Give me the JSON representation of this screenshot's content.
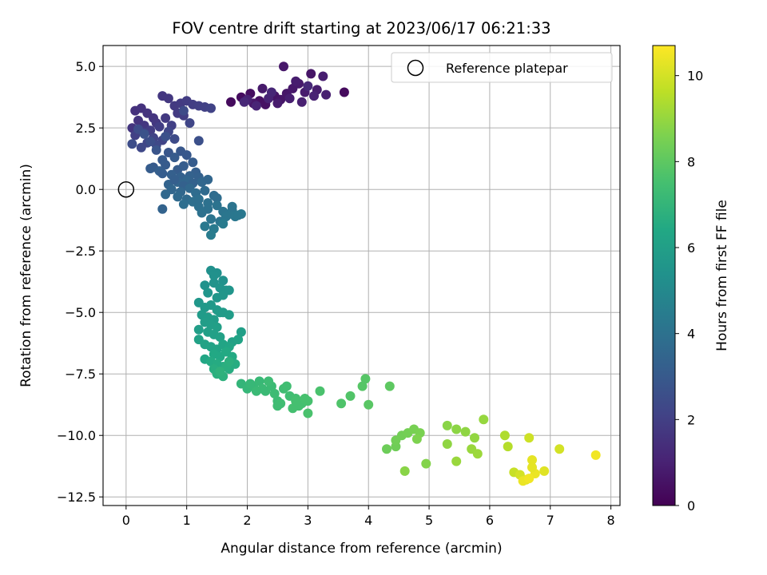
{
  "chart_data": {
    "type": "scatter",
    "title": "FOV centre drift starting at 2023/06/17 06:21:33",
    "xlabel": "Angular distance from reference (arcmin)",
    "ylabel": "Rotation from reference (arcmin)",
    "xlim": [
      -0.38,
      8.15
    ],
    "ylim": [
      -12.85,
      5.85
    ],
    "xticks": [
      0,
      1,
      2,
      3,
      4,
      5,
      6,
      7,
      8
    ],
    "xtick_labels": [
      "0",
      "1",
      "2",
      "3",
      "4",
      "5",
      "6",
      "7",
      "8"
    ],
    "yticks": [
      5.0,
      2.5,
      0.0,
      -2.5,
      -5.0,
      -7.5,
      -10.0,
      -12.5
    ],
    "ytick_labels": [
      "5.0",
      "2.5",
      "0.0",
      "−2.5",
      "−5.0",
      "−7.5",
      "−10.0",
      "−12.5"
    ],
    "grid": true,
    "legend": {
      "placement": "upper-right",
      "entries": [
        "Reference platepar"
      ]
    },
    "reference_point": {
      "x": 0,
      "y": 0,
      "label": "Reference platepar"
    },
    "colorbar": {
      "label": "Hours from first FF file",
      "colormap": "viridis",
      "range": [
        0,
        10.7
      ],
      "ticks": [
        0,
        2,
        4,
        6,
        8,
        10
      ],
      "tick_labels": [
        "0",
        "2",
        "4",
        "6",
        "8",
        "10"
      ]
    },
    "series": [
      {
        "x": [
          1.73,
          1.9,
          2.05,
          2.2,
          2.3,
          2.45,
          2.55,
          2.65,
          2.75,
          2.85,
          2.95,
          3.05,
          3.15,
          3.25,
          3.6,
          2.1,
          2.25,
          2.5,
          2.7,
          2.9,
          3.1,
          2.6,
          2.8,
          3.3,
          2.0,
          2.35,
          2.15,
          2.4,
          1.95,
          3.0
        ],
        "y": [
          3.55,
          3.75,
          3.9,
          3.6,
          3.45,
          3.8,
          3.65,
          3.9,
          4.1,
          4.3,
          3.95,
          4.7,
          4.05,
          4.6,
          3.95,
          3.5,
          4.1,
          3.5,
          3.7,
          3.55,
          3.8,
          5.0,
          4.4,
          3.85,
          3.65,
          3.7,
          3.4,
          3.95,
          3.55,
          4.2
        ],
        "hours": [
          0.3,
          0.35,
          0.4,
          0.45,
          0.5,
          0.55,
          0.6,
          0.65,
          0.7,
          0.75,
          0.8,
          0.6,
          0.85,
          0.9,
          0.3,
          0.7,
          0.75,
          0.8,
          0.9,
          0.95,
          1.0,
          0.7,
          0.85,
          0.95,
          1.0,
          1.05,
          1.1,
          1.15,
          1.2,
          1.25
        ]
      },
      {
        "x": [
          0.15,
          0.25,
          0.35,
          0.45,
          0.6,
          0.7,
          0.8,
          0.9,
          1.0,
          1.1,
          1.2,
          1.3,
          1.4,
          0.2,
          0.3,
          0.5,
          0.65,
          0.85,
          0.95,
          0.1,
          0.4,
          0.55,
          0.75,
          0.15,
          0.3,
          0.45,
          0.6,
          1.05,
          0.35,
          0.7,
          0.25,
          0.5,
          0.8,
          0.95,
          0.2,
          0.1,
          0.4,
          1.2,
          0.65,
          0.3
        ],
        "y": [
          3.2,
          3.3,
          3.1,
          2.9,
          3.8,
          3.7,
          3.4,
          3.5,
          3.6,
          3.45,
          3.4,
          3.35,
          3.3,
          2.8,
          2.6,
          2.7,
          2.9,
          3.1,
          3.0,
          2.5,
          2.4,
          2.55,
          2.6,
          2.2,
          2.3,
          2.1,
          2.0,
          2.7,
          1.9,
          2.35,
          1.7,
          1.8,
          2.05,
          3.2,
          2.45,
          1.85,
          1.95,
          1.98,
          2.15,
          2.25
        ],
        "hours": [
          1.5,
          1.55,
          1.6,
          1.65,
          1.7,
          1.75,
          1.8,
          1.85,
          1.9,
          1.95,
          2.0,
          2.05,
          2.1,
          1.6,
          1.7,
          1.75,
          1.8,
          1.85,
          1.9,
          1.65,
          1.9,
          1.95,
          2.0,
          2.0,
          2.05,
          2.1,
          2.15,
          2.2,
          2.2,
          2.25,
          2.3,
          2.35,
          2.4,
          2.4,
          2.45,
          2.5,
          2.55,
          2.6,
          2.65,
          2.7
        ]
      },
      {
        "x": [
          0.5,
          0.7,
          0.9,
          1.0,
          0.6,
          0.8,
          1.1,
          0.45,
          0.65,
          0.85,
          0.95,
          1.15,
          0.55,
          0.75,
          0.9,
          1.05,
          0.7,
          0.85,
          1.0,
          0.4,
          0.6,
          0.8,
          0.95,
          1.1,
          1.2,
          0.75,
          0.9,
          1.05,
          1.25,
          1.35,
          0.65,
          0.85,
          1.0,
          1.15,
          1.3,
          1.45,
          1.5,
          0.95,
          1.1,
          1.2,
          1.35,
          1.5,
          1.6,
          1.7,
          1.75,
          1.8,
          1.9,
          1.25,
          1.4,
          1.55,
          1.65,
          1.85,
          1.3,
          1.45,
          1.6,
          1.75,
          1.4,
          0.6,
          1.2,
          1.35
        ],
        "y": [
          1.6,
          1.5,
          1.55,
          1.4,
          1.2,
          1.3,
          1.1,
          0.9,
          1.0,
          0.8,
          0.95,
          0.7,
          0.75,
          0.6,
          0.5,
          0.55,
          0.2,
          0.3,
          0.35,
          0.85,
          0.65,
          0.4,
          0.15,
          0.25,
          0.5,
          0.0,
          -0.1,
          0.05,
          0.3,
          0.4,
          -0.2,
          -0.3,
          -0.4,
          -0.15,
          -0.05,
          -0.25,
          -0.35,
          -0.6,
          -0.5,
          -0.7,
          -0.8,
          -0.65,
          -0.9,
          -1.0,
          -0.85,
          -1.1,
          -1.0,
          -0.95,
          -1.2,
          -1.3,
          -1.1,
          -1.05,
          -1.5,
          -1.6,
          -1.4,
          -0.7,
          -1.85,
          -0.8,
          -0.4,
          -0.55
        ],
        "hours": [
          2.8,
          2.85,
          2.9,
          2.95,
          3.0,
          3.05,
          3.1,
          3.0,
          3.05,
          3.1,
          3.15,
          3.2,
          3.2,
          3.25,
          3.3,
          3.35,
          3.4,
          3.45,
          3.5,
          3.1,
          3.15,
          3.2,
          3.3,
          3.35,
          3.3,
          3.5,
          3.55,
          3.6,
          3.55,
          3.5,
          3.6,
          3.65,
          3.7,
          3.75,
          3.7,
          3.75,
          3.8,
          3.85,
          3.9,
          3.95,
          4.0,
          4.05,
          4.1,
          4.15,
          4.2,
          4.25,
          4.3,
          4.0,
          4.1,
          4.15,
          4.2,
          4.25,
          4.3,
          4.35,
          4.4,
          4.1,
          4.45,
          3.4,
          3.9,
          4.0
        ]
      },
      {
        "x": [
          1.4,
          1.5,
          1.6,
          1.3,
          1.45,
          1.55,
          1.65,
          1.35,
          1.5,
          1.6,
          1.7,
          1.2,
          1.3,
          1.4,
          1.5,
          1.55,
          1.25,
          1.35,
          1.45,
          1.6,
          1.7,
          1.3,
          1.4,
          1.5,
          1.2,
          1.35,
          1.45,
          1.55,
          1.75,
          1.9,
          1.2,
          1.3,
          1.4,
          1.5,
          1.6,
          1.7,
          1.85,
          1.3,
          1.45,
          1.55,
          1.65,
          1.75,
          1.4,
          1.5,
          1.6,
          1.7,
          1.8,
          1.45,
          1.55,
          1.65,
          1.5,
          1.6,
          1.7,
          1.55,
          1.45
        ],
        "y": [
          -3.3,
          -3.4,
          -3.7,
          -3.9,
          -3.8,
          -4.0,
          -4.1,
          -4.2,
          -4.4,
          -4.3,
          -4.1,
          -4.6,
          -4.8,
          -4.7,
          -4.9,
          -5.0,
          -5.1,
          -5.2,
          -5.3,
          -5.0,
          -5.1,
          -5.4,
          -5.5,
          -5.6,
          -5.7,
          -5.8,
          -5.9,
          -6.0,
          -6.2,
          -5.8,
          -6.1,
          -6.3,
          -6.4,
          -6.5,
          -6.3,
          -6.4,
          -6.1,
          -6.9,
          -6.7,
          -6.8,
          -6.6,
          -6.8,
          -7.0,
          -7.1,
          -7.2,
          -7.3,
          -7.1,
          -7.3,
          -7.4,
          -7.2,
          -7.5,
          -7.6,
          -7.0,
          -7.4,
          -3.5
        ],
        "hours": [
          5.3,
          5.3,
          5.35,
          5.4,
          5.45,
          5.5,
          5.5,
          5.55,
          5.6,
          5.6,
          5.55,
          5.65,
          5.7,
          5.7,
          5.75,
          5.8,
          5.8,
          5.85,
          5.85,
          5.8,
          5.85,
          5.9,
          5.95,
          6.0,
          5.95,
          6.0,
          6.05,
          6.1,
          6.1,
          6.0,
          6.1,
          6.15,
          6.2,
          6.25,
          6.25,
          6.3,
          6.2,
          6.35,
          6.4,
          6.4,
          6.45,
          6.45,
          6.5,
          6.55,
          6.55,
          6.6,
          6.6,
          6.65,
          6.7,
          6.7,
          6.75,
          6.8,
          6.75,
          6.85,
          5.35
        ]
      },
      {
        "x": [
          1.9,
          2.0,
          2.1,
          2.2,
          2.3,
          2.4,
          2.5,
          2.6,
          2.7,
          2.8,
          2.9,
          3.0,
          2.05,
          2.25,
          2.45,
          2.65,
          2.85,
          2.95,
          2.15,
          2.35,
          2.55,
          2.75,
          3.2,
          3.55,
          3.7,
          3.95,
          4.0,
          3.9,
          4.35,
          2.5,
          2.8,
          3.0
        ],
        "y": [
          -7.9,
          -8.1,
          -8.0,
          -7.8,
          -8.2,
          -8.0,
          -8.6,
          -8.1,
          -8.4,
          -8.5,
          -8.7,
          -8.6,
          -7.9,
          -8.1,
          -8.3,
          -8.0,
          -8.8,
          -8.5,
          -8.2,
          -7.8,
          -8.7,
          -8.9,
          -8.2,
          -8.7,
          -8.4,
          -7.7,
          -8.75,
          -8.0,
          -8.0,
          -8.8,
          -8.6,
          -9.1
        ],
        "hours": [
          7.0,
          7.05,
          7.1,
          7.15,
          7.2,
          7.25,
          7.3,
          7.35,
          7.4,
          7.45,
          7.5,
          7.55,
          7.1,
          7.2,
          7.3,
          7.4,
          7.5,
          7.55,
          7.2,
          7.3,
          7.4,
          7.5,
          7.6,
          7.7,
          7.75,
          7.85,
          7.9,
          7.85,
          8.0,
          7.35,
          7.5,
          7.6
        ]
      },
      {
        "x": [
          4.3,
          4.45,
          4.55,
          4.65,
          4.75,
          4.85,
          4.45,
          4.8,
          4.95,
          5.3,
          5.45,
          5.6,
          5.75,
          5.9,
          5.3,
          5.7,
          5.8,
          5.45,
          4.6
        ],
        "y": [
          -10.55,
          -10.45,
          -10.0,
          -9.9,
          -9.75,
          -9.9,
          -10.2,
          -10.15,
          -11.15,
          -9.6,
          -9.75,
          -9.85,
          -10.1,
          -9.35,
          -10.35,
          -10.55,
          -10.75,
          -11.05,
          -11.45
        ],
        "hours": [
          8.3,
          8.35,
          8.4,
          8.45,
          8.5,
          8.55,
          8.4,
          8.6,
          8.7,
          8.8,
          8.85,
          8.9,
          8.95,
          9.0,
          8.9,
          9.05,
          9.1,
          9.05,
          8.8
        ]
      },
      {
        "x": [
          6.25,
          6.3,
          6.4,
          6.5,
          6.6,
          6.65,
          6.7,
          6.75,
          6.9,
          7.15,
          7.75,
          6.7,
          6.55,
          6.65
        ],
        "y": [
          -10.0,
          -10.45,
          -11.5,
          -11.6,
          -11.8,
          -10.1,
          -11.0,
          -11.55,
          -11.45,
          -10.55,
          -10.8,
          -11.3,
          -11.85,
          -11.75
        ],
        "hours": [
          9.4,
          9.5,
          9.8,
          10.0,
          10.2,
          9.9,
          10.3,
          10.4,
          10.2,
          10.0,
          10.5,
          10.3,
          10.4,
          10.5
        ]
      }
    ]
  }
}
